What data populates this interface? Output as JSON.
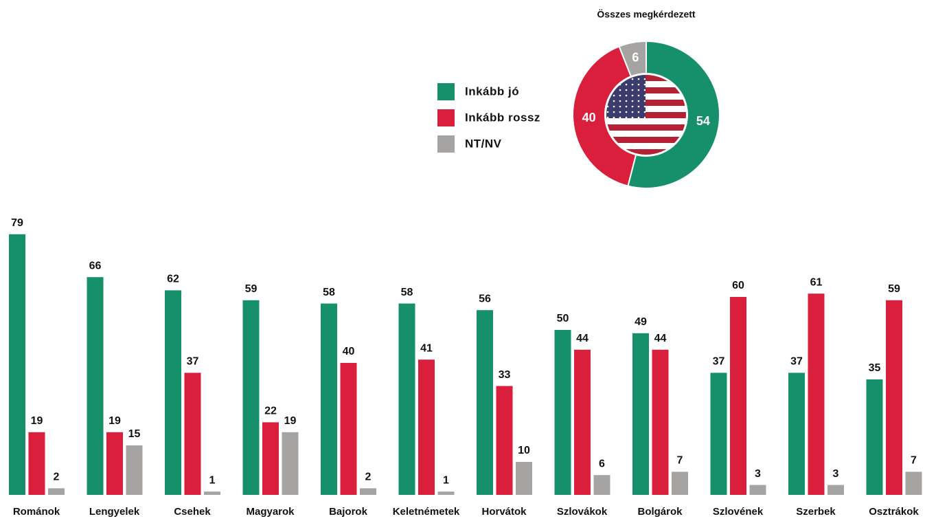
{
  "chart_data": [
    {
      "type": "bar",
      "categories": [
        "Románok",
        "Lengyelek",
        "Csehek",
        "Magyarok",
        "Bajorok",
        "Keletnémetek",
        "Horvátok",
        "Szlovákok",
        "Bolgárok",
        "Szlovének",
        "Szerbek",
        "Osztrákok"
      ],
      "series": [
        {
          "name": "Inkább jó",
          "color": "#15906a",
          "values": [
            79,
            66,
            62,
            59,
            58,
            58,
            56,
            50,
            49,
            37,
            37,
            35
          ]
        },
        {
          "name": "Inkább rossz",
          "color": "#d91f3b",
          "values": [
            19,
            19,
            37,
            22,
            40,
            41,
            33,
            44,
            44,
            60,
            61,
            59
          ]
        },
        {
          "name": "NT/NV",
          "color": "#a5a4a2",
          "values": [
            2,
            15,
            1,
            19,
            2,
            1,
            10,
            6,
            7,
            3,
            3,
            7
          ]
        }
      ]
    },
    {
      "type": "pie",
      "title": "Összes megkérdezett",
      "values": [
        54,
        40,
        6
      ],
      "colors": [
        "#15906a",
        "#d91f3b",
        "#a5a4a2"
      ]
    }
  ]
}
